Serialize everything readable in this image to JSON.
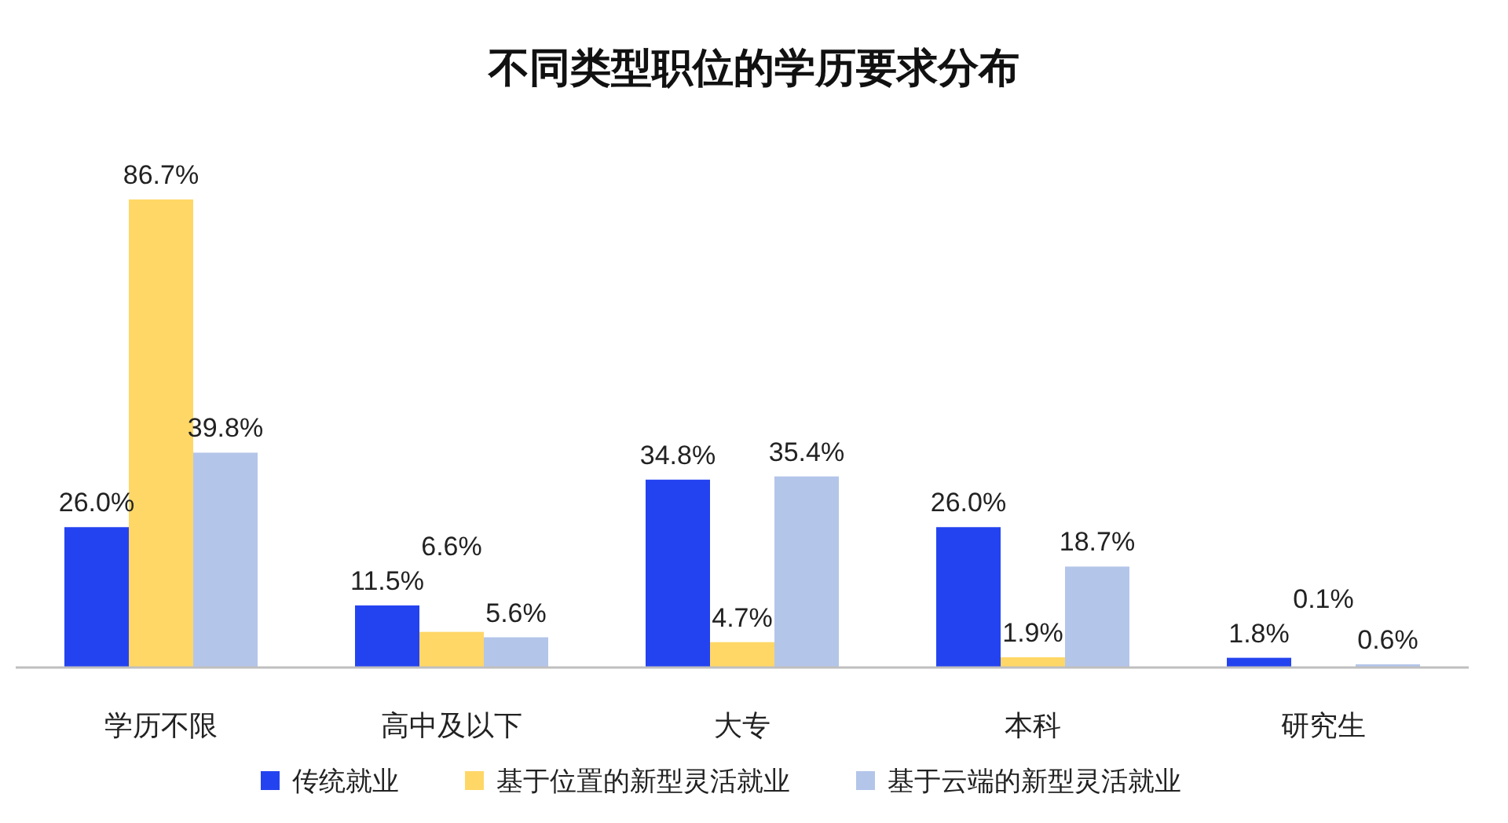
{
  "chart_data": {
    "type": "bar",
    "title": "不同类型职位的学历要求分布",
    "categories": [
      "学历不限",
      "高中及以下",
      "大专",
      "本科",
      "研究生"
    ],
    "series": [
      {
        "name": "传统就业",
        "color": "#2443f0",
        "values": [
          26.0,
          11.5,
          34.8,
          26.0,
          1.8
        ],
        "value_labels": [
          "26.0%",
          "11.5%",
          "34.8%",
          "26.0%",
          "1.8%"
        ]
      },
      {
        "name": "基于位置的新型灵活就业",
        "color": "#ffd766",
        "values": [
          86.7,
          6.6,
          4.7,
          1.9,
          0.1
        ],
        "value_labels": [
          "86.7%",
          "6.6%",
          "4.7%",
          "1.9%",
          "0.1%"
        ]
      },
      {
        "name": "基于云端的新型灵活就业",
        "color": "#b4c5ea",
        "values": [
          39.8,
          5.6,
          35.4,
          18.7,
          0.6
        ],
        "value_labels": [
          "39.8%",
          "5.6%",
          "35.4%",
          "18.7%",
          "0.6%"
        ]
      }
    ],
    "legend": "bottom",
    "grid": false
  }
}
